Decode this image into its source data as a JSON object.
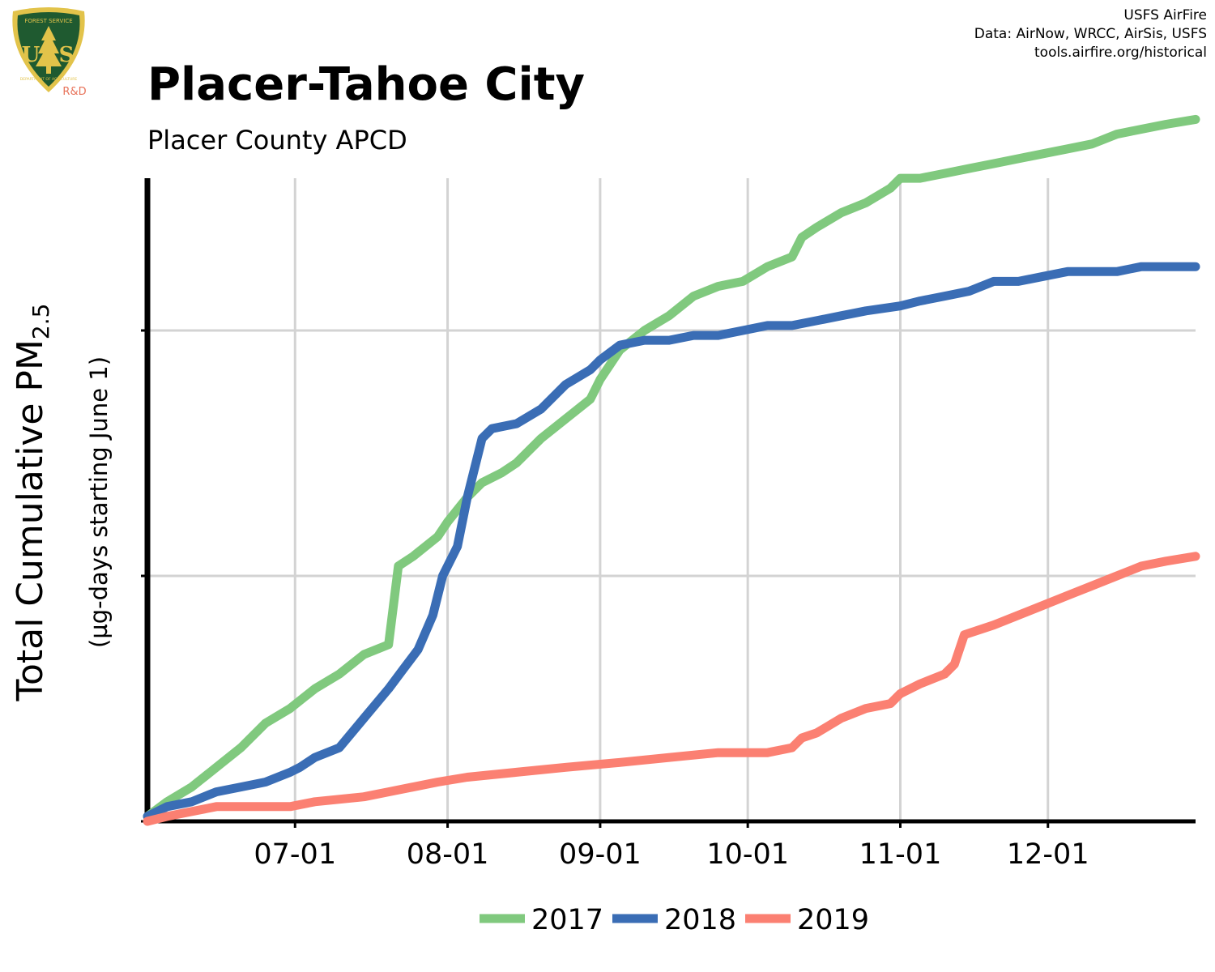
{
  "header": {
    "title": "Placer-Tahoe City",
    "subtitle": "Placer County APCD",
    "credits": [
      "USFS AirFire",
      "Data: AirNow, WRCC, AirSis, USFS",
      "tools.airfire.org/historical"
    ]
  },
  "logo": {
    "icon": "usfs-shield-icon",
    "text_top": "FOREST SERVICE",
    "text_bottom": "DEPARTMENT OF AGRICULTURE",
    "letters": "US",
    "suffix": "R&D",
    "colors": {
      "green": "#1f5a30",
      "gold": "#e2c34a",
      "suffix": "#e8735a"
    }
  },
  "axes": {
    "ylabel_main": "Total Cumulative PM",
    "ylabel_sub": "2.5",
    "ylabel_units": "(µg-days starting June 1)"
  },
  "colors": {
    "2017": "#80c97e",
    "2018": "#3a6db5",
    "2019": "#fb8072",
    "grid": "#d3d3d3"
  },
  "chart_data": {
    "type": "line",
    "x_type": "date",
    "xlim": [
      "06-01",
      "12-31"
    ],
    "x_ticks": [
      "07-01",
      "08-01",
      "09-01",
      "10-01",
      "11-01",
      "12-01"
    ],
    "ylim": [
      0,
      1.33
    ],
    "y_ticks": [
      0,
      0.5,
      1.0
    ],
    "y_tick_labels_shown": false,
    "grid": true,
    "legend_position": "bottom",
    "series": [
      {
        "name": "2017",
        "color": "#80c97e",
        "points": [
          [
            "06-01",
            0.01
          ],
          [
            "06-05",
            0.04
          ],
          [
            "06-10",
            0.07
          ],
          [
            "06-15",
            0.11
          ],
          [
            "06-20",
            0.15
          ],
          [
            "06-25",
            0.2
          ],
          [
            "06-30",
            0.23
          ],
          [
            "07-05",
            0.27
          ],
          [
            "07-10",
            0.3
          ],
          [
            "07-15",
            0.34
          ],
          [
            "07-20",
            0.36
          ],
          [
            "07-22",
            0.52
          ],
          [
            "07-25",
            0.54
          ],
          [
            "07-30",
            0.58
          ],
          [
            "08-01",
            0.61
          ],
          [
            "08-05",
            0.66
          ],
          [
            "08-08",
            0.69
          ],
          [
            "08-12",
            0.71
          ],
          [
            "08-15",
            0.73
          ],
          [
            "08-20",
            0.78
          ],
          [
            "08-25",
            0.82
          ],
          [
            "08-30",
            0.86
          ],
          [
            "09-01",
            0.9
          ],
          [
            "09-05",
            0.96
          ],
          [
            "09-10",
            1.0
          ],
          [
            "09-15",
            1.03
          ],
          [
            "09-20",
            1.07
          ],
          [
            "09-25",
            1.09
          ],
          [
            "09-30",
            1.1
          ],
          [
            "10-05",
            1.13
          ],
          [
            "10-10",
            1.15
          ],
          [
            "10-12",
            1.19
          ],
          [
            "10-15",
            1.21
          ],
          [
            "10-20",
            1.24
          ],
          [
            "10-25",
            1.26
          ],
          [
            "10-30",
            1.29
          ],
          [
            "11-01",
            1.31
          ],
          [
            "11-05",
            1.31
          ],
          [
            "11-10",
            1.32
          ],
          [
            "11-15",
            1.33
          ],
          [
            "11-20",
            1.34
          ],
          [
            "11-25",
            1.35
          ],
          [
            "11-30",
            1.36
          ],
          [
            "12-05",
            1.37
          ],
          [
            "12-10",
            1.38
          ],
          [
            "12-15",
            1.4
          ],
          [
            "12-20",
            1.41
          ],
          [
            "12-25",
            1.42
          ],
          [
            "12-31",
            1.43
          ]
        ]
      },
      {
        "name": "2018",
        "color": "#3a6db5",
        "points": [
          [
            "06-01",
            0.01
          ],
          [
            "06-05",
            0.03
          ],
          [
            "06-10",
            0.04
          ],
          [
            "06-15",
            0.06
          ],
          [
            "06-20",
            0.07
          ],
          [
            "06-25",
            0.08
          ],
          [
            "06-30",
            0.1
          ],
          [
            "07-02",
            0.11
          ],
          [
            "07-05",
            0.13
          ],
          [
            "07-10",
            0.15
          ],
          [
            "07-15",
            0.21
          ],
          [
            "07-20",
            0.27
          ],
          [
            "07-23",
            0.31
          ],
          [
            "07-26",
            0.35
          ],
          [
            "07-29",
            0.42
          ],
          [
            "07-31",
            0.5
          ],
          [
            "08-03",
            0.56
          ],
          [
            "08-05",
            0.66
          ],
          [
            "08-08",
            0.78
          ],
          [
            "08-10",
            0.8
          ],
          [
            "08-15",
            0.81
          ],
          [
            "08-20",
            0.84
          ],
          [
            "08-25",
            0.89
          ],
          [
            "08-30",
            0.92
          ],
          [
            "09-01",
            0.94
          ],
          [
            "09-05",
            0.97
          ],
          [
            "09-10",
            0.98
          ],
          [
            "09-15",
            0.98
          ],
          [
            "09-20",
            0.99
          ],
          [
            "09-25",
            0.99
          ],
          [
            "09-30",
            1.0
          ],
          [
            "10-05",
            1.01
          ],
          [
            "10-10",
            1.01
          ],
          [
            "10-15",
            1.02
          ],
          [
            "10-20",
            1.03
          ],
          [
            "10-25",
            1.04
          ],
          [
            "11-01",
            1.05
          ],
          [
            "11-05",
            1.06
          ],
          [
            "11-10",
            1.07
          ],
          [
            "11-15",
            1.08
          ],
          [
            "11-20",
            1.1
          ],
          [
            "11-25",
            1.1
          ],
          [
            "11-30",
            1.11
          ],
          [
            "12-05",
            1.12
          ],
          [
            "12-10",
            1.12
          ],
          [
            "12-15",
            1.12
          ],
          [
            "12-20",
            1.13
          ],
          [
            "12-25",
            1.13
          ],
          [
            "12-31",
            1.13
          ]
        ]
      },
      {
        "name": "2019",
        "color": "#fb8072",
        "points": [
          [
            "06-01",
            0.0
          ],
          [
            "06-05",
            0.01
          ],
          [
            "06-10",
            0.02
          ],
          [
            "06-15",
            0.03
          ],
          [
            "06-20",
            0.03
          ],
          [
            "06-30",
            0.03
          ],
          [
            "07-05",
            0.04
          ],
          [
            "07-15",
            0.05
          ],
          [
            "07-20",
            0.06
          ],
          [
            "07-30",
            0.08
          ],
          [
            "08-05",
            0.09
          ],
          [
            "08-15",
            0.1
          ],
          [
            "08-25",
            0.11
          ],
          [
            "09-05",
            0.12
          ],
          [
            "09-15",
            0.13
          ],
          [
            "09-25",
            0.14
          ],
          [
            "10-05",
            0.14
          ],
          [
            "10-10",
            0.15
          ],
          [
            "10-12",
            0.17
          ],
          [
            "10-15",
            0.18
          ],
          [
            "10-20",
            0.21
          ],
          [
            "10-25",
            0.23
          ],
          [
            "10-30",
            0.24
          ],
          [
            "11-01",
            0.26
          ],
          [
            "11-05",
            0.28
          ],
          [
            "11-10",
            0.3
          ],
          [
            "11-12",
            0.32
          ],
          [
            "11-14",
            0.38
          ],
          [
            "11-20",
            0.4
          ],
          [
            "11-25",
            0.42
          ],
          [
            "11-30",
            0.44
          ],
          [
            "12-05",
            0.46
          ],
          [
            "12-10",
            0.48
          ],
          [
            "12-15",
            0.5
          ],
          [
            "12-20",
            0.52
          ],
          [
            "12-25",
            0.53
          ],
          [
            "12-31",
            0.54
          ]
        ]
      }
    ],
    "legend": [
      "2017",
      "2018",
      "2019"
    ]
  }
}
